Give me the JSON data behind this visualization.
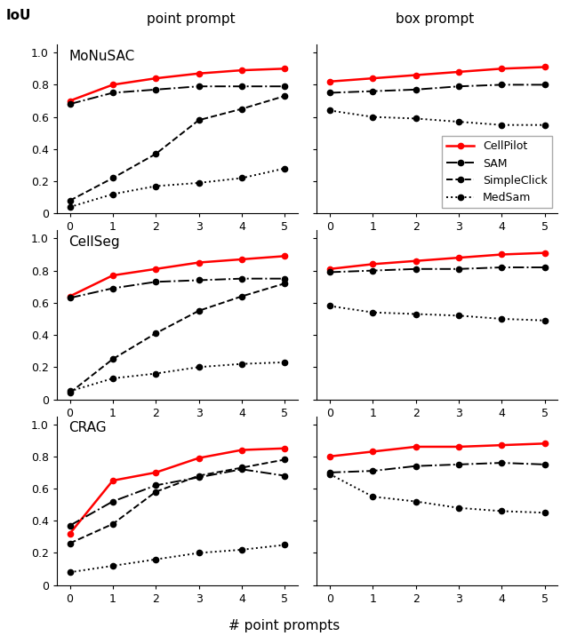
{
  "x": [
    0,
    1,
    2,
    3,
    4,
    5
  ],
  "datasets": {
    "MoNuSAC": {
      "point": {
        "CellPilot": [
          0.7,
          0.8,
          0.84,
          0.87,
          0.89,
          0.9
        ],
        "SAM": [
          0.68,
          0.75,
          0.77,
          0.79,
          0.79,
          0.79
        ],
        "SimpleClick": [
          0.08,
          0.22,
          0.37,
          0.58,
          0.65,
          0.73
        ],
        "MedSam": [
          0.04,
          0.12,
          0.17,
          0.19,
          0.22,
          0.28
        ]
      },
      "box": {
        "CellPilot": [
          0.82,
          0.84,
          0.86,
          0.88,
          0.9,
          0.91
        ],
        "SAM": [
          0.75,
          0.76,
          0.77,
          0.79,
          0.8,
          0.8
        ],
        "SimpleClick": [
          null,
          null,
          null,
          null,
          null,
          null
        ],
        "MedSam": [
          0.64,
          0.6,
          0.59,
          0.57,
          0.55,
          0.55
        ]
      }
    },
    "CellSeg": {
      "point": {
        "CellPilot": [
          0.64,
          0.77,
          0.81,
          0.85,
          0.87,
          0.89
        ],
        "SAM": [
          0.63,
          0.69,
          0.73,
          0.74,
          0.75,
          0.75
        ],
        "SimpleClick": [
          0.04,
          0.25,
          0.41,
          0.55,
          0.64,
          0.72
        ],
        "MedSam": [
          0.05,
          0.13,
          0.16,
          0.2,
          0.22,
          0.23
        ]
      },
      "box": {
        "CellPilot": [
          0.81,
          0.84,
          0.86,
          0.88,
          0.9,
          0.91
        ],
        "SAM": [
          0.79,
          0.8,
          0.81,
          0.81,
          0.82,
          0.82
        ],
        "SimpleClick": [
          null,
          null,
          null,
          null,
          null,
          null
        ],
        "MedSam": [
          0.58,
          0.54,
          0.53,
          0.52,
          0.5,
          0.49
        ]
      }
    },
    "CRAG": {
      "point": {
        "CellPilot": [
          0.32,
          0.65,
          0.7,
          0.79,
          0.84,
          0.85
        ],
        "SAM": [
          0.37,
          0.52,
          0.62,
          0.67,
          0.72,
          0.68
        ],
        "SimpleClick": [
          0.26,
          0.38,
          0.58,
          0.68,
          0.73,
          0.78
        ],
        "MedSam": [
          0.08,
          0.12,
          0.16,
          0.2,
          0.22,
          0.25
        ]
      },
      "box": {
        "CellPilot": [
          0.8,
          0.83,
          0.86,
          0.86,
          0.87,
          0.88
        ],
        "SAM": [
          0.7,
          0.71,
          0.74,
          0.75,
          0.76,
          0.75
        ],
        "SimpleClick": [
          null,
          null,
          null,
          null,
          null,
          null
        ],
        "MedSam": [
          0.69,
          0.55,
          0.52,
          0.48,
          0.46,
          0.45
        ]
      }
    }
  },
  "row_labels": [
    "MoNuSAC",
    "CellSeg",
    "CRAG"
  ],
  "col_labels": [
    "point prompt",
    "box prompt"
  ],
  "xlabel": "# point prompts",
  "ylabel": "IoU",
  "ylim": [
    0,
    1.05
  ],
  "yticks": [
    0,
    0.2,
    0.4,
    0.6,
    0.8,
    1.0
  ],
  "yticklabels": [
    "0",
    "0.2",
    "0.4",
    "0.6",
    "0.8",
    "1.0"
  ],
  "xticks": [
    0,
    1,
    2,
    3,
    4,
    5
  ],
  "legend_order": [
    "CellPilot",
    "SAM",
    "SimpleClick",
    "MedSam"
  ],
  "line_styles": {
    "CellPilot": {
      "color": "#ff0000",
      "linestyle": "solid",
      "linewidth": 1.8
    },
    "SAM": {
      "color": "#000000",
      "linestyle": "dashdot",
      "linewidth": 1.4
    },
    "SimpleClick": {
      "color": "#000000",
      "linestyle": "dashed",
      "linewidth": 1.4
    },
    "MedSam": {
      "color": "#000000",
      "linestyle": "dotted",
      "linewidth": 1.4
    }
  },
  "marker": "o",
  "markersize": 4.5,
  "dataset_label_fontsize": 11,
  "axis_label_fontsize": 11,
  "tick_fontsize": 9,
  "legend_fontsize": 9,
  "col_header_fontsize": 11
}
